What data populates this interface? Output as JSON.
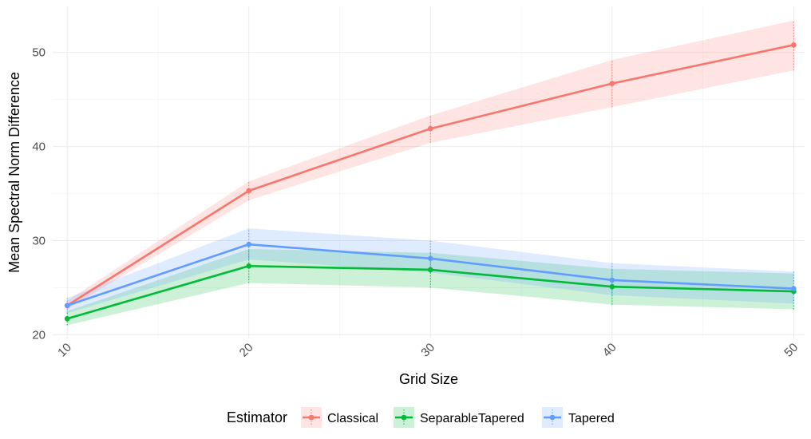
{
  "chart_data": {
    "type": "line",
    "title": "",
    "xlabel": "Grid Size",
    "ylabel": "Mean Spectral Norm Difference",
    "x": [
      10,
      20,
      30,
      40,
      50
    ],
    "x_ticks": [
      10,
      20,
      30,
      40,
      50
    ],
    "y_ticks": [
      20,
      30,
      40,
      50
    ],
    "xlim": [
      9.2,
      50.6
    ],
    "ylim": [
      19.6,
      54.9
    ],
    "grid": true,
    "x_tick_label_rotation": "45deg",
    "legend": {
      "title": "Estimator",
      "position": "bottom"
    },
    "series": [
      {
        "name": "Classical",
        "color": "#F8766D",
        "values": [
          23.1,
          35.3,
          41.9,
          46.7,
          50.8
        ],
        "lower": [
          22.7,
          34.3,
          40.4,
          44.2,
          48.1
        ],
        "upper": [
          23.6,
          36.3,
          43.3,
          49.2,
          53.4
        ]
      },
      {
        "name": "SeparableTapered",
        "color": "#00BA38",
        "values": [
          21.7,
          27.3,
          26.9,
          25.1,
          24.6
        ],
        "lower": [
          21.0,
          25.5,
          25.0,
          23.2,
          22.7
        ],
        "upper": [
          22.5,
          29.1,
          28.7,
          27.0,
          26.5
        ]
      },
      {
        "name": "Tapered",
        "color": "#619CFF",
        "values": [
          23.1,
          29.6,
          28.1,
          25.8,
          24.9
        ],
        "lower": [
          22.3,
          28.0,
          26.6,
          24.2,
          23.3
        ],
        "upper": [
          23.9,
          31.3,
          30.0,
          27.6,
          26.7
        ]
      }
    ]
  }
}
